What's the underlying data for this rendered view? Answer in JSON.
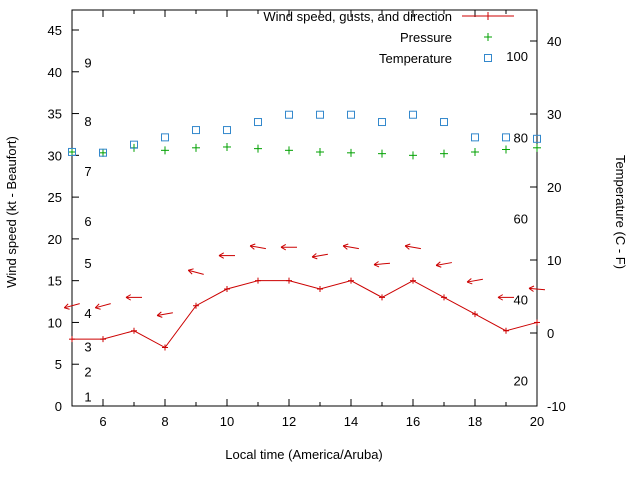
{
  "chart_data": {
    "type": "line",
    "title": "",
    "xlabel": "Local time (America/Aruba)",
    "x_range": [
      5,
      20
    ],
    "x_hours": [
      5,
      6,
      7,
      8,
      9,
      10,
      11,
      12,
      13,
      14,
      15,
      16,
      17,
      18,
      19,
      20
    ],
    "x_tick_labels": [
      "6",
      "8",
      "10",
      "12",
      "14",
      "16",
      "18",
      "20"
    ],
    "left_axis": {
      "label": "Wind speed (kt - Beaufort)",
      "ticks": [
        "0",
        "5",
        "10",
        "15",
        "20",
        "25",
        "30",
        "35",
        "40",
        "45"
      ],
      "tick_values": [
        0,
        5,
        10,
        15,
        20,
        25,
        30,
        35,
        40,
        45
      ],
      "range": [
        0,
        47.4
      ]
    },
    "right_axis": {
      "label": "Temperature (C - F)",
      "ticks": [
        "-10",
        "0",
        "10",
        "20",
        "30",
        "40"
      ],
      "tick_values": [
        -10,
        0,
        10,
        20,
        30,
        40
      ],
      "range": [
        -10,
        44.2
      ]
    },
    "beaufort_scale": [
      {
        "label": "1",
        "kt": 1
      },
      {
        "label": "2",
        "kt": 4
      },
      {
        "label": "3",
        "kt": 7
      },
      {
        "label": "4",
        "kt": 11
      },
      {
        "label": "5",
        "kt": 17
      },
      {
        "label": "6",
        "kt": 22
      },
      {
        "label": "7",
        "kt": 28
      },
      {
        "label": "8",
        "kt": 34
      },
      {
        "label": "9",
        "kt": 41
      }
    ],
    "fahrenheit_scale": [
      {
        "label": "20",
        "f": 20
      },
      {
        "label": "40",
        "f": 40
      },
      {
        "label": "60",
        "f": 60
      },
      {
        "label": "80",
        "f": 80
      },
      {
        "label": "100",
        "f": 100
      }
    ],
    "legend_position": "top-right-inside",
    "grid": false,
    "series": [
      {
        "name": "Wind speed, gusts, and direction",
        "type": "wind",
        "axis": "left",
        "marker": "plus-line-with-direction-arrows",
        "color": "#cc0000",
        "wind_speed_kt": [
          8,
          8,
          9,
          7,
          12,
          14,
          15,
          15,
          14,
          15,
          13,
          15,
          13,
          11,
          9,
          10
        ],
        "gust_kt": [
          12,
          12,
          13,
          11,
          16,
          18,
          19,
          19,
          18,
          19,
          17,
          19,
          17,
          15,
          13,
          14
        ],
        "direction_deg": [
          75,
          75,
          90,
          80,
          105,
          90,
          100,
          90,
          80,
          100,
          85,
          100,
          80,
          80,
          90,
          95
        ]
      },
      {
        "name": "Pressure",
        "type": "points",
        "axis": "left",
        "marker": "plus",
        "color": "#00a000",
        "values": [
          30.4,
          30.3,
          30.9,
          30.6,
          30.9,
          31.0,
          30.8,
          30.6,
          30.4,
          30.3,
          30.2,
          30.0,
          30.2,
          30.4,
          30.7,
          30.9
        ]
      },
      {
        "name": "Temperature",
        "type": "points",
        "axis": "right",
        "marker": "open-square",
        "color": "#3388cc",
        "values_c": [
          24.8,
          24.7,
          25.8,
          26.8,
          27.8,
          27.8,
          28.9,
          29.9,
          29.9,
          29.9,
          28.9,
          29.9,
          28.9,
          26.8,
          26.8,
          26.6
        ]
      }
    ]
  }
}
